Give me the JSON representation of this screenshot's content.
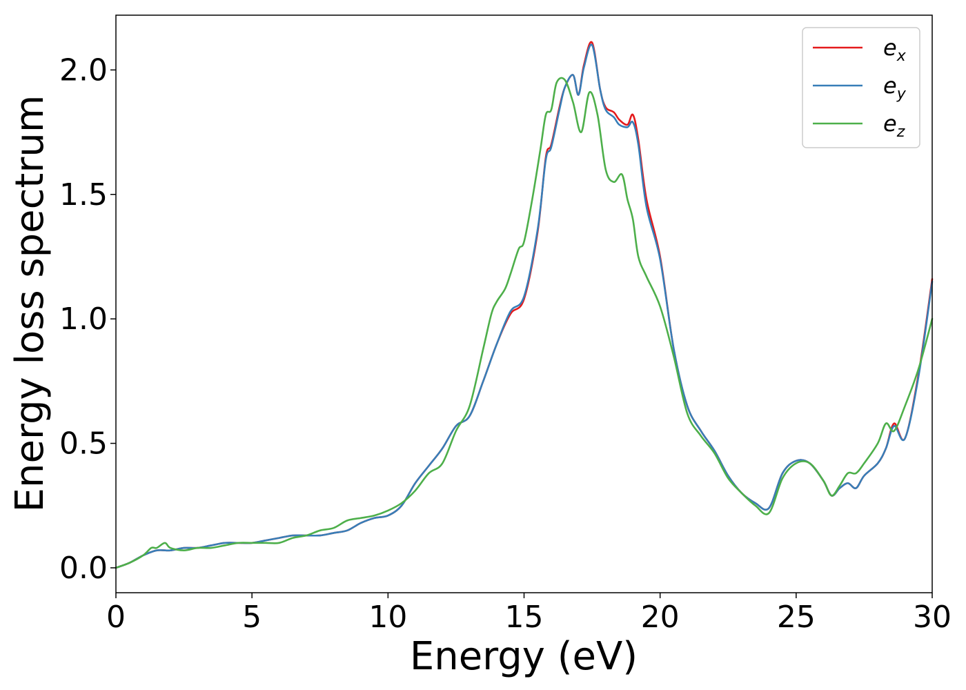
{
  "chart_data": {
    "type": "line",
    "title": "",
    "xlabel": "Energy (eV)",
    "ylabel": "Energy loss spectrum",
    "xlim": [
      0,
      30
    ],
    "ylim": [
      -0.1,
      2.22
    ],
    "xticks": [
      "0",
      "5",
      "10",
      "15",
      "20",
      "25",
      "30"
    ],
    "yticks": [
      "0.0",
      "0.5",
      "1.0",
      "1.5",
      "2.0"
    ],
    "grid": false,
    "legend_position": "top-right",
    "series": [
      {
        "name": "e_x",
        "label_base": "e",
        "label_sub": "x",
        "color": "#e41a1c",
        "x": [
          0,
          0.5,
          1,
          1.5,
          2,
          2.5,
          3,
          3.5,
          4,
          4.5,
          5,
          5.5,
          6,
          6.5,
          7,
          7.5,
          8,
          8.5,
          9,
          9.5,
          10,
          10.5,
          11,
          11.5,
          12,
          12.5,
          13,
          13.5,
          14,
          14.5,
          15,
          15.5,
          15.8,
          16,
          16.3,
          16.5,
          16.8,
          17,
          17.2,
          17.5,
          17.8,
          18,
          18.3,
          18.5,
          18.8,
          19,
          19.2,
          19.5,
          20,
          20.5,
          21,
          21.5,
          22,
          22.5,
          23,
          23.5,
          24,
          24.5,
          25,
          25.5,
          26,
          26.3,
          26.6,
          26.9,
          27.2,
          27.5,
          28,
          28.3,
          28.6,
          29,
          29.5,
          30
        ],
        "y": [
          0,
          0.02,
          0.05,
          0.07,
          0.07,
          0.08,
          0.08,
          0.09,
          0.1,
          0.1,
          0.1,
          0.11,
          0.12,
          0.13,
          0.13,
          0.13,
          0.14,
          0.15,
          0.18,
          0.2,
          0.21,
          0.25,
          0.34,
          0.41,
          0.48,
          0.57,
          0.61,
          0.75,
          0.9,
          1.02,
          1.08,
          1.35,
          1.65,
          1.7,
          1.85,
          1.93,
          1.98,
          1.9,
          2.02,
          2.11,
          1.92,
          1.85,
          1.83,
          1.8,
          1.78,
          1.82,
          1.72,
          1.48,
          1.25,
          0.88,
          0.65,
          0.55,
          0.47,
          0.37,
          0.3,
          0.26,
          0.24,
          0.38,
          0.43,
          0.42,
          0.35,
          0.29,
          0.32,
          0.34,
          0.32,
          0.37,
          0.42,
          0.48,
          0.58,
          0.52,
          0.78,
          1.16
        ]
      },
      {
        "name": "e_y",
        "label_base": "e",
        "label_sub": "y",
        "color": "#377eb8",
        "x": [
          0,
          0.5,
          1,
          1.5,
          2,
          2.5,
          3,
          3.5,
          4,
          4.5,
          5,
          5.5,
          6,
          6.5,
          7,
          7.5,
          8,
          8.5,
          9,
          9.5,
          10,
          10.5,
          11,
          11.5,
          12,
          12.5,
          13,
          13.5,
          14,
          14.5,
          15,
          15.5,
          15.8,
          16,
          16.3,
          16.5,
          16.8,
          17,
          17.2,
          17.5,
          17.8,
          18,
          18.3,
          18.5,
          18.8,
          19,
          19.2,
          19.5,
          20,
          20.5,
          21,
          21.5,
          22,
          22.5,
          23,
          23.5,
          24,
          24.5,
          25,
          25.5,
          26,
          26.3,
          26.6,
          26.9,
          27.2,
          27.5,
          28,
          28.3,
          28.6,
          29,
          29.5,
          30
        ],
        "y": [
          0,
          0.02,
          0.05,
          0.07,
          0.07,
          0.08,
          0.08,
          0.09,
          0.1,
          0.1,
          0.1,
          0.11,
          0.12,
          0.13,
          0.13,
          0.13,
          0.14,
          0.15,
          0.18,
          0.2,
          0.21,
          0.25,
          0.34,
          0.41,
          0.48,
          0.57,
          0.61,
          0.75,
          0.9,
          1.03,
          1.09,
          1.36,
          1.64,
          1.69,
          1.84,
          1.93,
          1.98,
          1.9,
          2.01,
          2.1,
          1.92,
          1.84,
          1.81,
          1.78,
          1.77,
          1.79,
          1.7,
          1.45,
          1.24,
          0.88,
          0.65,
          0.55,
          0.47,
          0.37,
          0.3,
          0.26,
          0.24,
          0.38,
          0.43,
          0.42,
          0.35,
          0.29,
          0.32,
          0.34,
          0.32,
          0.37,
          0.42,
          0.48,
          0.57,
          0.52,
          0.77,
          1.15
        ]
      },
      {
        "name": "e_z",
        "label_base": "e",
        "label_sub": "z",
        "color": "#4daf4a",
        "x": [
          0,
          0.5,
          1,
          1.3,
          1.5,
          1.8,
          2,
          2.5,
          3,
          3.5,
          4,
          4.5,
          5,
          5.5,
          6,
          6.5,
          7,
          7.5,
          8,
          8.5,
          9,
          9.5,
          10,
          10.5,
          11,
          11.5,
          12,
          12.5,
          13,
          13.5,
          13.8,
          14,
          14.3,
          14.5,
          14.8,
          15,
          15.3,
          15.6,
          15.8,
          16,
          16.2,
          16.5,
          16.8,
          17.1,
          17.4,
          17.7,
          18,
          18.3,
          18.6,
          18.8,
          19,
          19.2,
          19.5,
          20,
          20.5,
          21,
          21.5,
          22,
          22.5,
          23,
          23.5,
          24,
          24.5,
          25,
          25.5,
          26,
          26.3,
          26.6,
          26.9,
          27.2,
          27.5,
          28,
          28.3,
          28.6,
          29,
          29.5,
          30
        ],
        "y": [
          0,
          0.02,
          0.05,
          0.08,
          0.08,
          0.1,
          0.08,
          0.07,
          0.08,
          0.08,
          0.09,
          0.1,
          0.1,
          0.1,
          0.1,
          0.12,
          0.13,
          0.15,
          0.16,
          0.19,
          0.2,
          0.21,
          0.23,
          0.26,
          0.31,
          0.38,
          0.42,
          0.55,
          0.65,
          0.88,
          1.02,
          1.07,
          1.12,
          1.18,
          1.28,
          1.31,
          1.48,
          1.68,
          1.82,
          1.84,
          1.95,
          1.96,
          1.87,
          1.75,
          1.91,
          1.82,
          1.6,
          1.55,
          1.58,
          1.48,
          1.4,
          1.25,
          1.17,
          1.05,
          0.85,
          0.62,
          0.53,
          0.46,
          0.36,
          0.3,
          0.25,
          0.22,
          0.36,
          0.42,
          0.42,
          0.35,
          0.29,
          0.33,
          0.38,
          0.38,
          0.42,
          0.5,
          0.58,
          0.55,
          0.65,
          0.8,
          1.0
        ]
      }
    ]
  }
}
